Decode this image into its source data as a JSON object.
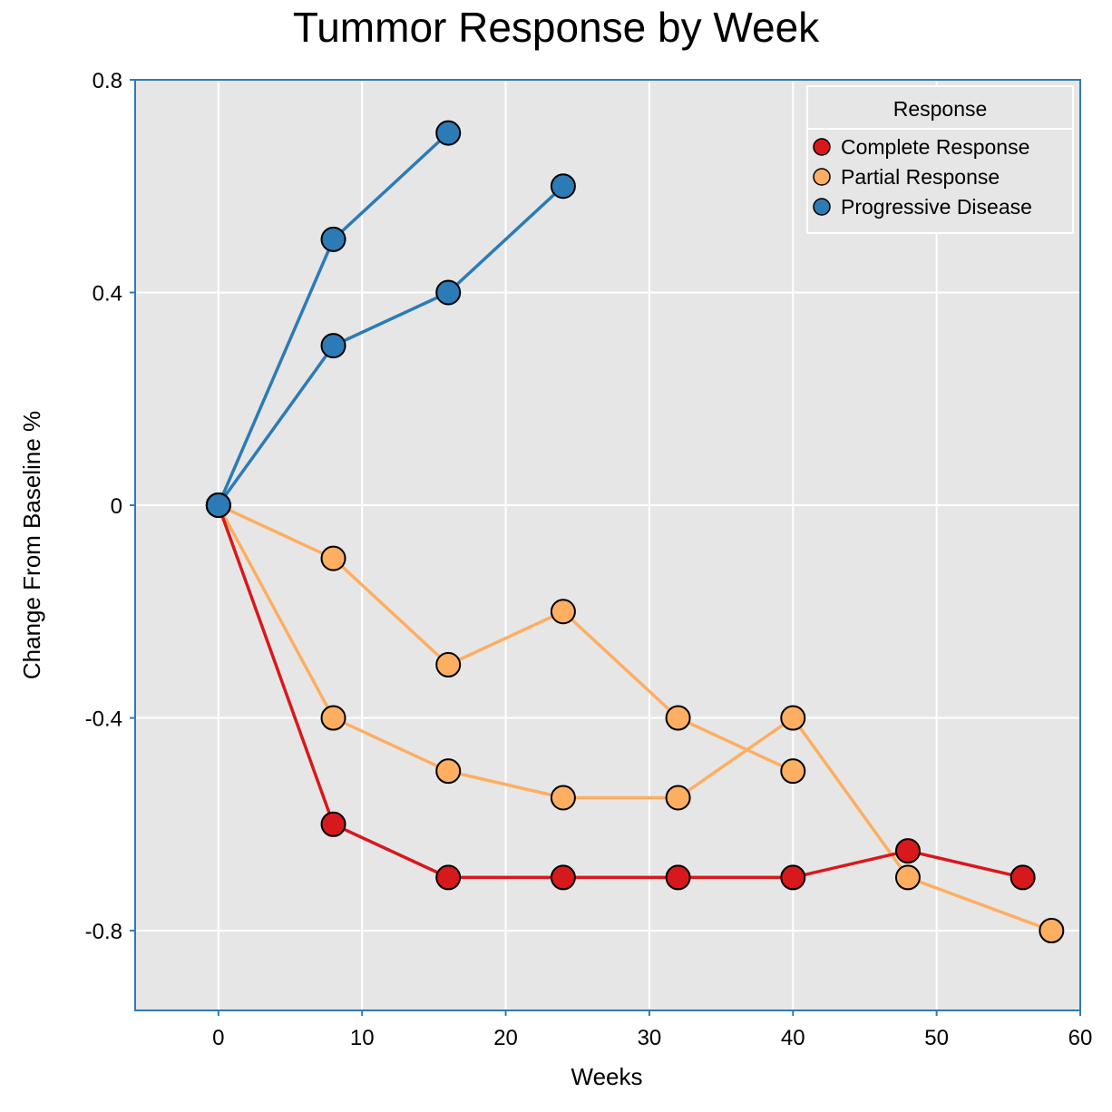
{
  "chart_data": {
    "type": "line",
    "title": "Tummor Response by Week",
    "xlabel": "Weeks",
    "ylabel": "Change From Baseline %",
    "xlim": [
      -5.8,
      60
    ],
    "ylim": [
      -0.95,
      0.8
    ],
    "x_ticks": [
      0,
      10,
      20,
      30,
      40,
      50,
      60
    ],
    "y_ticks": [
      0.8,
      0.4,
      0,
      -0.4,
      -0.8
    ],
    "y_tick_labels": [
      "0.8",
      "0.4",
      "0",
      "-0.4",
      "-0.8"
    ],
    "grid": true,
    "background": "#e6e6e6",
    "legend": {
      "title": "Response",
      "position": "top-right",
      "entries": [
        {
          "name": "Complete Response",
          "color": "#d7191c"
        },
        {
          "name": "Partial Response",
          "color": "#fdae61"
        },
        {
          "name": "Progressive Disease",
          "color": "#2c7bb6"
        }
      ]
    },
    "series": [
      {
        "group": "Partial Response",
        "color": "#fdae61",
        "points": [
          [
            0,
            0
          ],
          [
            8,
            -0.1
          ],
          [
            16,
            -0.3
          ],
          [
            24,
            -0.2
          ],
          [
            32,
            -0.4
          ],
          [
            40,
            -0.5
          ]
        ]
      },
      {
        "group": "Partial Response",
        "color": "#fdae61",
        "points": [
          [
            0,
            0
          ],
          [
            8,
            -0.4
          ],
          [
            16,
            -0.5
          ],
          [
            24,
            -0.55
          ],
          [
            32,
            -0.55
          ],
          [
            40,
            -0.4
          ],
          [
            48,
            -0.7
          ],
          [
            58,
            -0.8
          ]
        ]
      },
      {
        "group": "Complete Response",
        "color": "#d7191c",
        "points": [
          [
            0,
            0
          ],
          [
            8,
            -0.6
          ],
          [
            16,
            -0.7
          ],
          [
            24,
            -0.7
          ],
          [
            32,
            -0.7
          ],
          [
            40,
            -0.7
          ],
          [
            48,
            -0.65
          ],
          [
            56,
            -0.7
          ]
        ]
      },
      {
        "group": "Progressive Disease",
        "color": "#2c7bb6",
        "points": [
          [
            0,
            0
          ],
          [
            8,
            0.5
          ],
          [
            16,
            0.7
          ]
        ]
      },
      {
        "group": "Progressive Disease",
        "color": "#2c7bb6",
        "points": [
          [
            0,
            0
          ],
          [
            8,
            0.3
          ],
          [
            16,
            0.4
          ],
          [
            24,
            0.6
          ]
        ]
      }
    ]
  }
}
